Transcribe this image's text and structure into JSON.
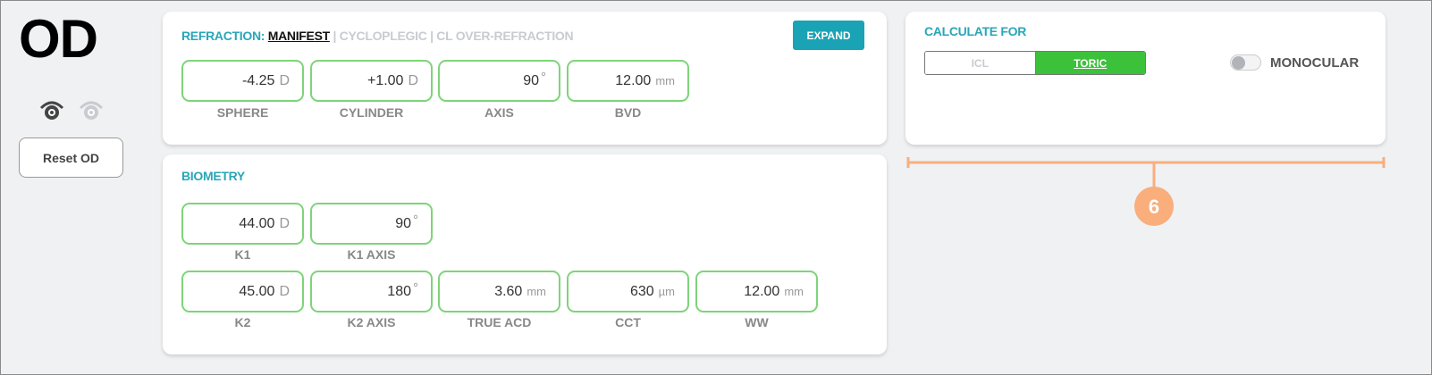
{
  "eye_side": "OD",
  "eye_icons": [
    "eye-active-icon",
    "eye-inactive-icon"
  ],
  "reset_label": "Reset OD",
  "refraction": {
    "title": "REFRACTION: ",
    "tabs": [
      "MANIFEST",
      " | CYCLOPLEGIC | CL OVER-REFRACTION"
    ],
    "expand_label": "EXPAND",
    "fields": [
      {
        "label": "SPHERE",
        "value": "-4.25",
        "unit": "D"
      },
      {
        "label": "CYLINDER",
        "value": "+1.00",
        "unit": "D"
      },
      {
        "label": "AXIS",
        "value": "90",
        "unit": "°"
      },
      {
        "label": "BVD",
        "value": "12.00",
        "unit": "mm"
      }
    ]
  },
  "biometry": {
    "title": "BIOMETRY",
    "row1": [
      {
        "label": "K1",
        "value": "44.00",
        "unit": "D"
      },
      {
        "label": "K1 AXIS",
        "value": "90",
        "unit": "°"
      }
    ],
    "row2": [
      {
        "label": "K2",
        "value": "45.00",
        "unit": "D"
      },
      {
        "label": "K2 AXIS",
        "value": "180",
        "unit": "°"
      },
      {
        "label": "TRUE ACD",
        "value": "3.60",
        "unit": "mm"
      },
      {
        "label": "CCT",
        "value": "630",
        "unit": "µm"
      },
      {
        "label": "WW",
        "value": "12.00",
        "unit": "mm"
      }
    ]
  },
  "calculate": {
    "title": "CALCULATE FOR",
    "options": [
      "ICL",
      "TORIC"
    ],
    "selected": "TORIC",
    "monocular_label": "MONOCULAR",
    "monocular_on": false
  },
  "annotation": {
    "number": "6",
    "color": "#f9ae7c"
  },
  "colors": {
    "accent": "#29a6b8",
    "field_border": "#7ed47a",
    "toggle_on": "#3cc13b"
  }
}
